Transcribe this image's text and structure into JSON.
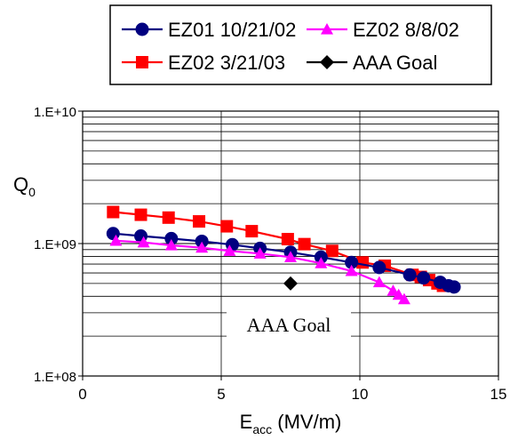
{
  "chart_data": {
    "type": "scatter",
    "xlabel": {
      "main": "E",
      "sub": "acc",
      "rest": " (MV/m)"
    },
    "ylabel": {
      "main": "Q",
      "sub": "0"
    },
    "xlim": [
      0,
      15
    ],
    "ylim": [
      100000000,
      10000000000
    ],
    "y_scale": "log",
    "x_ticks": [
      "0",
      "5",
      "10",
      "15"
    ],
    "y_ticks": [
      "1.E+08",
      "1.E+09",
      "1.E+10"
    ],
    "grid": true,
    "legend_position": "top",
    "annotation": "AAA Goal",
    "series": [
      {
        "name": "EZ01 10/21/02",
        "color": "#000080",
        "marker": "circle",
        "line": true,
        "points": [
          [
            1.1,
            1190000000.0
          ],
          [
            2.1,
            1140000000.0
          ],
          [
            3.2,
            1090000000.0
          ],
          [
            4.3,
            1040000000.0
          ],
          [
            5.4,
            980000000.0
          ],
          [
            6.4,
            920000000.0
          ],
          [
            7.5,
            860000000.0
          ],
          [
            8.6,
            790000000.0
          ],
          [
            9.7,
            720000000.0
          ],
          [
            10.7,
            660000000.0
          ],
          [
            11.8,
            580000000.0
          ],
          [
            12.3,
            550000000.0
          ],
          [
            12.9,
            510000000.0
          ],
          [
            13.2,
            480000000.0
          ],
          [
            13.4,
            470000000.0
          ]
        ]
      },
      {
        "name": "EZ02 8/8/02",
        "color": "#ff00ff",
        "marker": "triangle",
        "line": true,
        "points": [
          [
            1.2,
            1050000000.0
          ],
          [
            2.2,
            1020000000.0
          ],
          [
            3.2,
            970000000.0
          ],
          [
            4.3,
            930000000.0
          ],
          [
            5.3,
            880000000.0
          ],
          [
            6.4,
            840000000.0
          ],
          [
            7.5,
            790000000.0
          ],
          [
            8.6,
            710000000.0
          ],
          [
            9.7,
            620000000.0
          ],
          [
            10.7,
            510000000.0
          ],
          [
            11.2,
            440000000.0
          ],
          [
            11.4,
            410000000.0
          ],
          [
            11.6,
            380000000.0
          ]
        ]
      },
      {
        "name": "EZ02 3/21/03",
        "color": "#ff0000",
        "marker": "square",
        "line": true,
        "points": [
          [
            1.1,
            1730000000.0
          ],
          [
            2.1,
            1650000000.0
          ],
          [
            3.1,
            1570000000.0
          ],
          [
            4.2,
            1470000000.0
          ],
          [
            5.2,
            1350000000.0
          ],
          [
            6.1,
            1240000000.0
          ],
          [
            7.4,
            1080000000.0
          ],
          [
            8.0,
            990000000.0
          ],
          [
            9.0,
            880000000.0
          ],
          [
            10.1,
            720000000.0
          ],
          [
            10.9,
            680000000.0
          ],
          [
            11.9,
            580000000.0
          ],
          [
            12.2,
            560000000.0
          ],
          [
            12.5,
            530000000.0
          ],
          [
            12.8,
            500000000.0
          ],
          [
            13.0,
            480000000.0
          ]
        ]
      },
      {
        "name": "AAA Goal",
        "color": "#000000",
        "marker": "diamond",
        "line": false,
        "points": [
          [
            7.5,
            500000000.0
          ]
        ]
      }
    ]
  }
}
